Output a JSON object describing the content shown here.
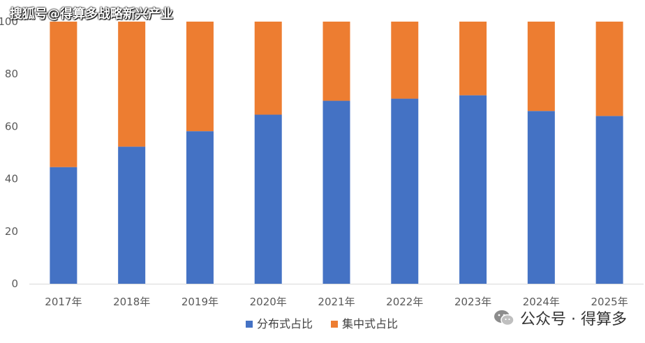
{
  "watermark_top": "搜狐号@得算多战略新兴产业",
  "watermark_bottom": "公众号 · 得算多",
  "chart_data": {
    "type": "bar",
    "stacked": true,
    "categories": [
      "2017年",
      "2018年",
      "2019年",
      "2020年",
      "2021年",
      "2022年",
      "2023年",
      "2024年",
      "2025年"
    ],
    "series": [
      {
        "name": "分布式占比",
        "color": "#4472C4",
        "values": [
          44.5,
          52.3,
          58.2,
          64.5,
          69.8,
          70.6,
          71.9,
          65.9,
          64.0
        ]
      },
      {
        "name": "集中式占比",
        "color": "#ED7D31",
        "values": [
          55.5,
          47.7,
          41.8,
          35.5,
          30.2,
          29.4,
          28.1,
          34.1,
          36.0
        ]
      }
    ],
    "yticks": [
      0,
      20,
      40,
      60,
      80,
      100
    ],
    "ylim": [
      0,
      100
    ],
    "grid": false,
    "legend": "bottom-center"
  }
}
